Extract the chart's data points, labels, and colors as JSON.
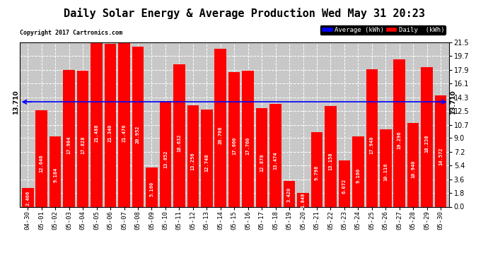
{
  "title": "Daily Solar Energy & Average Production Wed May 31 20:23",
  "copyright": "Copyright 2017 Cartronics.com",
  "categories": [
    "04-30",
    "05-01",
    "05-02",
    "05-03",
    "05-04",
    "05-05",
    "05-06",
    "05-07",
    "05-08",
    "05-09",
    "05-10",
    "05-11",
    "05-12",
    "05-13",
    "05-14",
    "05-15",
    "05-16",
    "05-17",
    "05-18",
    "05-19",
    "05-20",
    "05-21",
    "05-22",
    "05-23",
    "05-24",
    "05-25",
    "05-26",
    "05-27",
    "05-28",
    "05-29",
    "05-30"
  ],
  "values": [
    2.406,
    12.646,
    9.184,
    17.904,
    17.828,
    21.488,
    21.34,
    21.476,
    20.952,
    5.16,
    13.852,
    18.632,
    13.256,
    12.748,
    20.708,
    17.66,
    17.76,
    12.878,
    13.474,
    3.42,
    1.848,
    9.798,
    13.158,
    6.072,
    9.16,
    17.948,
    10.116,
    19.296,
    10.94,
    18.238,
    14.572
  ],
  "average": 13.71,
  "bar_color": "#ff0000",
  "avg_line_color": "#0000ff",
  "background_color": "#ffffff",
  "grid_color": "#ffffff",
  "plot_bg_color": "#c8c8c8",
  "ylim": [
    0.0,
    21.5
  ],
  "yticks": [
    0.0,
    1.8,
    3.6,
    5.4,
    7.2,
    9.0,
    10.7,
    12.5,
    14.3,
    16.1,
    17.9,
    19.7,
    21.5
  ],
  "title_fontsize": 11,
  "bar_label_fontsize": 5.0,
  "legend_avg_label": "Average (kWh)",
  "legend_daily_label": "Daily  (kWh)",
  "avg_label": "13.710"
}
